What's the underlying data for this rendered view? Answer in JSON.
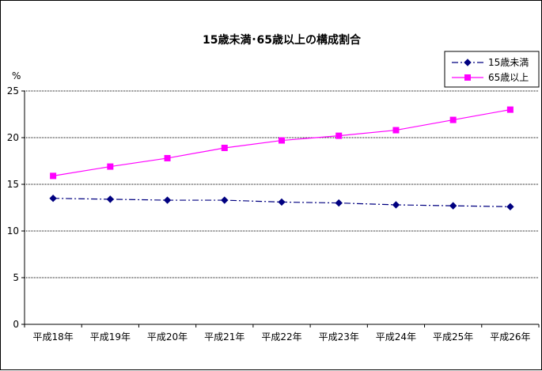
{
  "chart_data": {
    "type": "line",
    "title": "15歳未満･65歳以上の構成割合",
    "ylabel_unit": "%",
    "categories": [
      "平成18年",
      "平成19年",
      "平成20年",
      "平成21年",
      "平成22年",
      "平成23年",
      "平成24年",
      "平成25年",
      "平成26年"
    ],
    "ylim": [
      0,
      25
    ],
    "yticks": [
      "0",
      "5",
      "10",
      "15",
      "20",
      "25"
    ],
    "grid": true,
    "legend_position": "top-right",
    "series": [
      {
        "name": "15歳未満",
        "color": "#000080",
        "line_style": "dash-dot",
        "marker": "diamond",
        "values": [
          13.5,
          13.4,
          13.3,
          13.3,
          13.1,
          13.0,
          12.8,
          12.7,
          12.6
        ]
      },
      {
        "name": "65歳以上",
        "color": "#FF00FF",
        "line_style": "solid",
        "marker": "square",
        "values": [
          15.9,
          16.9,
          17.8,
          18.9,
          19.7,
          20.2,
          20.8,
          21.9,
          23.0
        ]
      }
    ]
  }
}
